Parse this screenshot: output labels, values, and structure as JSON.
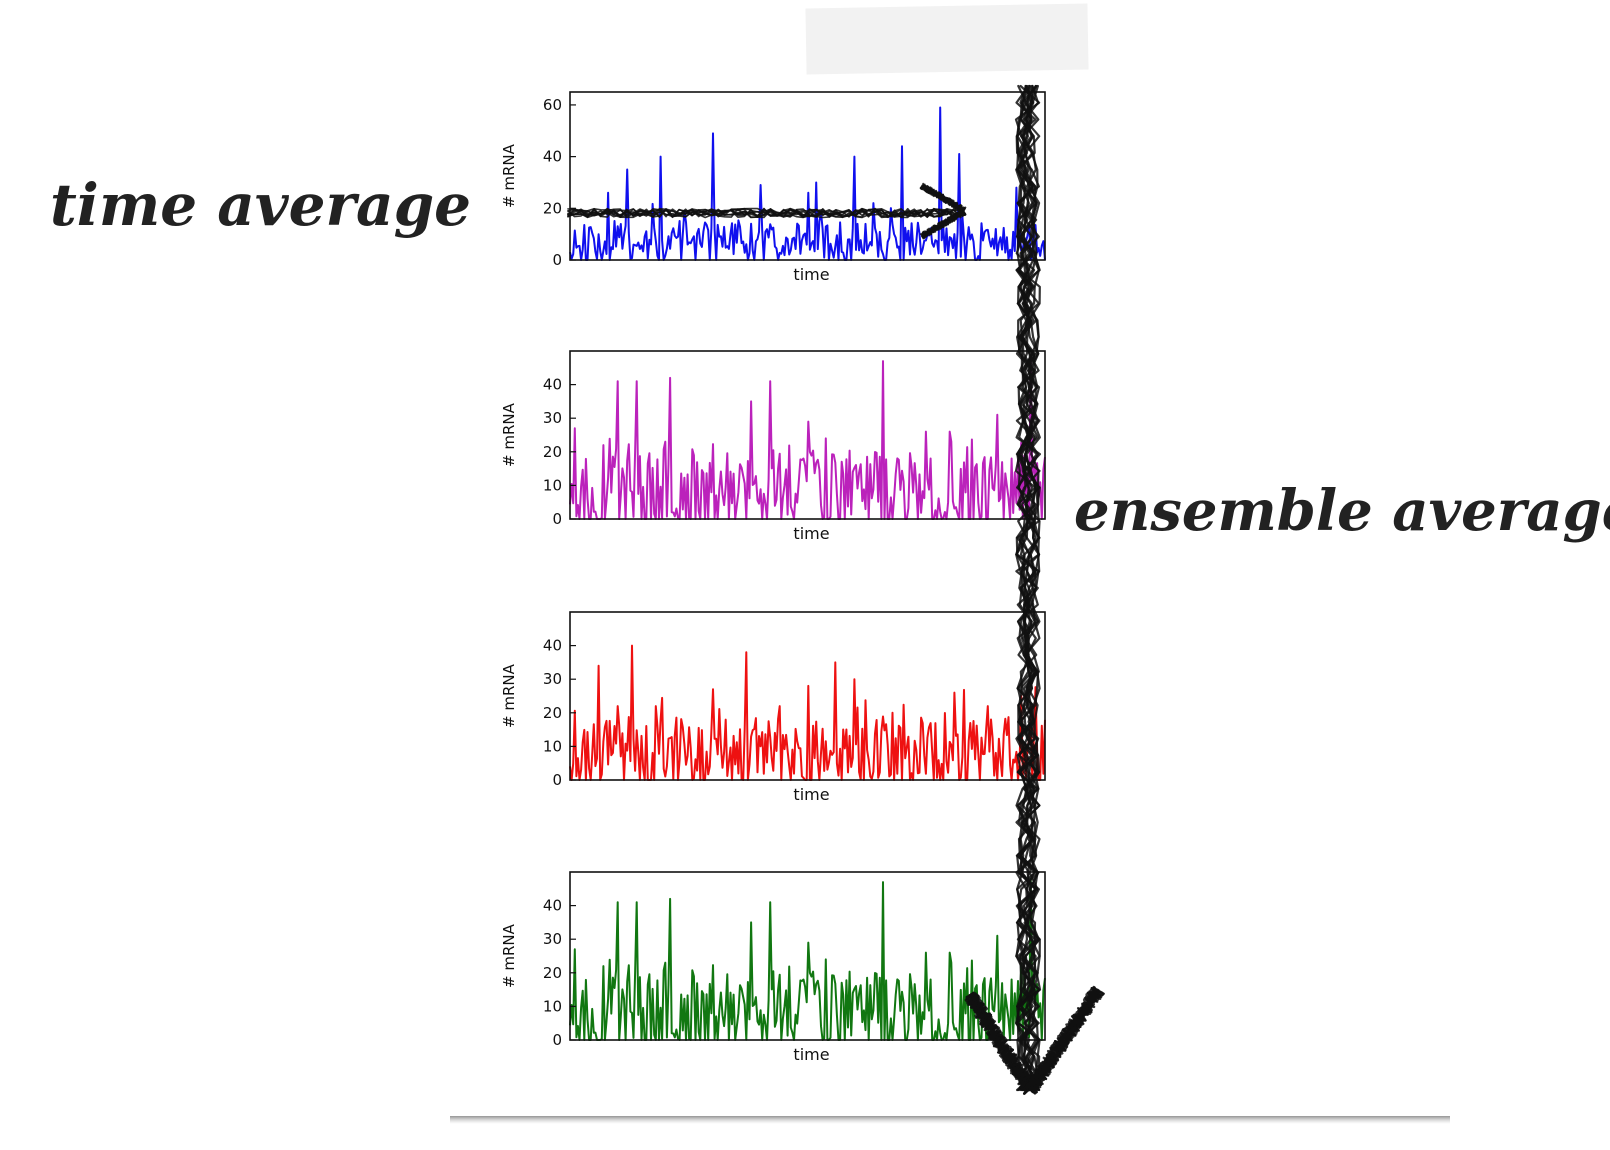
{
  "labels": {
    "time_average": "time average",
    "ensemble_average": "ensemble average"
  },
  "colors": {
    "series_1": "#1010ee",
    "series_2": "#bb22bb",
    "series_3": "#ee1111",
    "series_4": "#117711",
    "arrow": "#111111"
  },
  "chart_data": [
    {
      "type": "line",
      "xlabel": "time",
      "ylabel": "# mRNA",
      "ylim": [
        0,
        65
      ],
      "yticks": [
        0,
        20,
        40,
        60
      ],
      "color": "#1010ee",
      "seed": 11,
      "base": 7,
      "peaks": [
        [
          0.08,
          26
        ],
        [
          0.12,
          35
        ],
        [
          0.19,
          40
        ],
        [
          0.24,
          19
        ],
        [
          0.3,
          49
        ],
        [
          0.4,
          29
        ],
        [
          0.5,
          26
        ],
        [
          0.52,
          30
        ],
        [
          0.6,
          40
        ],
        [
          0.64,
          22
        ],
        [
          0.7,
          44
        ],
        [
          0.78,
          59
        ],
        [
          0.82,
          41
        ],
        [
          0.94,
          28
        ]
      ]
    },
    {
      "type": "line",
      "xlabel": "time",
      "ylabel": "# mRNA",
      "ylim": [
        0,
        50
      ],
      "yticks": [
        0,
        10,
        20,
        30,
        40
      ],
      "color": "#bb22bb",
      "seed": 23,
      "base": 10,
      "peaks": [
        [
          0.01,
          27
        ],
        [
          0.07,
          22
        ],
        [
          0.1,
          41
        ],
        [
          0.14,
          41
        ],
        [
          0.2,
          23
        ],
        [
          0.21,
          42
        ],
        [
          0.38,
          35
        ],
        [
          0.42,
          41
        ],
        [
          0.5,
          29
        ],
        [
          0.54,
          24
        ],
        [
          0.66,
          47
        ],
        [
          0.75,
          26
        ],
        [
          0.8,
          26
        ],
        [
          0.9,
          31
        ],
        [
          0.97,
          48
        ]
      ]
    },
    {
      "type": "line",
      "xlabel": "time",
      "ylabel": "# mRNA",
      "ylim": [
        0,
        50
      ],
      "yticks": [
        0,
        10,
        20,
        30,
        40
      ],
      "color": "#ee1111",
      "seed": 37,
      "base": 9,
      "peaks": [
        [
          0.06,
          34
        ],
        [
          0.1,
          22
        ],
        [
          0.13,
          40
        ],
        [
          0.18,
          22
        ],
        [
          0.3,
          27
        ],
        [
          0.37,
          38
        ],
        [
          0.44,
          22
        ],
        [
          0.5,
          28
        ],
        [
          0.56,
          35
        ],
        [
          0.6,
          30
        ],
        [
          0.68,
          20
        ],
        [
          0.81,
          26
        ],
        [
          0.88,
          22
        ],
        [
          0.95,
          25
        ]
      ]
    },
    {
      "type": "line",
      "xlabel": "time",
      "ylabel": "# mRNA",
      "ylim": [
        0,
        50
      ],
      "yticks": [
        0,
        10,
        20,
        30,
        40
      ],
      "color": "#117711",
      "seed": 23,
      "base": 10,
      "peaks": [
        [
          0.01,
          27
        ],
        [
          0.07,
          22
        ],
        [
          0.1,
          41
        ],
        [
          0.14,
          41
        ],
        [
          0.2,
          23
        ],
        [
          0.21,
          42
        ],
        [
          0.38,
          35
        ],
        [
          0.42,
          41
        ],
        [
          0.5,
          29
        ],
        [
          0.54,
          24
        ],
        [
          0.66,
          47
        ],
        [
          0.75,
          26
        ],
        [
          0.8,
          26
        ],
        [
          0.9,
          31
        ],
        [
          0.97,
          48
        ]
      ]
    }
  ]
}
